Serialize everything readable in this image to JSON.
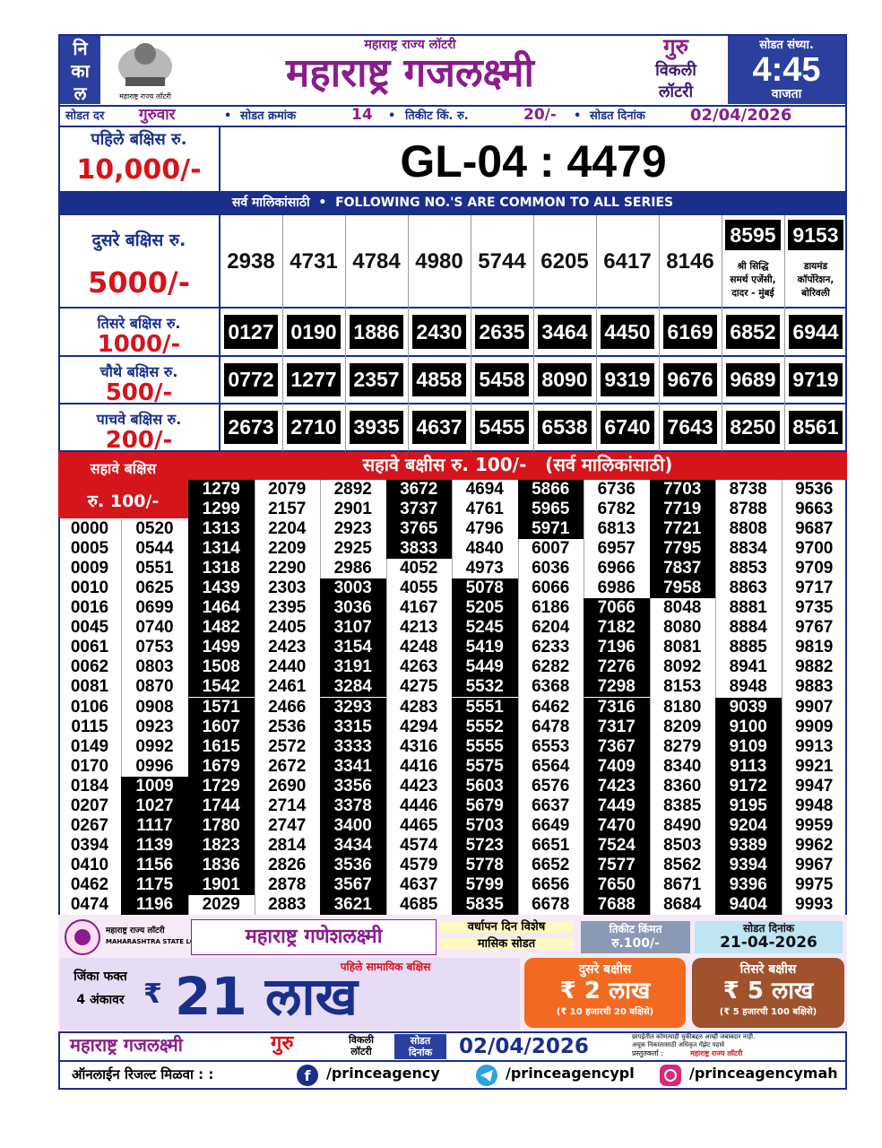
{
  "header": {
    "result_label": [
      "नि",
      "का",
      "ल"
    ],
    "logo_caption": "महाराष्ट्र राज्य लॉटरी",
    "org": "महाराष्ट्र राज्य लॉटरी",
    "title": "महाराष्ट्र गजलक्ष्मी",
    "day": "गुरु",
    "kind": [
      "विकली",
      "लॉटरी"
    ],
    "time_label": "सोडत संध्या.",
    "time": "4:45",
    "time_unit": "वाजता"
  },
  "info": {
    "day_label": "सोडत दर",
    "day": "गुरुवार",
    "draw_no_label": "सोडत क्रमांक",
    "draw_no": "14",
    "price_label": "तिकीट किं. रु.",
    "price": "20/-",
    "date_label": "सोडत दिनांक",
    "date": "02/04/2026"
  },
  "first_prize": {
    "label": "पहिले बक्षिस रु.",
    "amount": "10,000/-",
    "number": "GL-04 : 4479"
  },
  "common_banner": "सर्व मालिकांसाठी  •  FOLLOWING NO.'S ARE COMMON TO ALL SERIES",
  "prizes": [
    {
      "label": "दुसरे बक्षिस रु.",
      "amount": "5000/-",
      "numbers": [
        "2938",
        "4731",
        "4784",
        "4980",
        "5744",
        "6205",
        "6417",
        "8146"
      ],
      "agent_numbers": [
        {
          "number": "8595",
          "agent": [
            "श्री सिद्धि",
            "समर्थ एजेंसी,",
            "दादर - मुंबई"
          ]
        },
        {
          "number": "9153",
          "agent": [
            "डायमंड",
            "कॉर्पोरेशन,",
            "बोरिवली"
          ]
        }
      ]
    },
    {
      "label": "तिसरे बक्षिस रु.",
      "amount": "1000/-",
      "numbers": [
        "0127",
        "0190",
        "1886",
        "2430",
        "2635",
        "3464",
        "4450",
        "6169",
        "6852",
        "6944"
      ]
    },
    {
      "label": "चौथे बक्षिस रु.",
      "amount": "500/-",
      "numbers": [
        "0772",
        "1277",
        "2357",
        "4858",
        "5458",
        "8090",
        "9319",
        "9676",
        "9689",
        "9719"
      ]
    },
    {
      "label": "पाचवे बक्षिस रु.",
      "amount": "200/-",
      "numbers": [
        "2673",
        "2710",
        "3935",
        "4637",
        "5455",
        "6538",
        "6740",
        "7643",
        "8250",
        "8561"
      ]
    }
  ],
  "sixth_prize": {
    "label": "सहावे बक्षिस",
    "amount": "रु. 100/-",
    "banner": "सहावे बक्षीस रु. 100/-   (सर्व मालिकांसाठी)",
    "columns": [
      [
        "0000",
        "0005",
        "0009",
        "0010",
        "0016",
        "0045",
        "0061",
        "0062",
        "0081",
        "0106",
        "0115",
        "0149",
        "0170",
        "0184",
        "0207",
        "0267",
        "0394",
        "0410",
        "0462",
        "0474"
      ],
      [
        "0520",
        "0544",
        "0551",
        "0625",
        "0699",
        "0740",
        "0753",
        "0803",
        "0870",
        "0908",
        "0923",
        "0992",
        "0996",
        "1009",
        "1027",
        "1117",
        "1139",
        "1156",
        "1175",
        "1196"
      ],
      [
        "1279",
        "1299",
        "1313",
        "1314",
        "1318",
        "1439",
        "1464",
        "1482",
        "1499",
        "1508",
        "1542",
        "1571",
        "1607",
        "1615",
        "1679",
        "1729",
        "1744",
        "1780",
        "1823",
        "1836",
        "1901",
        "2029"
      ],
      [
        "2079",
        "2157",
        "2204",
        "2209",
        "2290",
        "2303",
        "2395",
        "2405",
        "2423",
        "2440",
        "2461",
        "2466",
        "2536",
        "2572",
        "2672",
        "2690",
        "2714",
        "2747",
        "2814",
        "2826",
        "2878",
        "2883"
      ],
      [
        "2892",
        "2901",
        "2923",
        "2925",
        "2986",
        "3003",
        "3036",
        "3107",
        "3154",
        "3191",
        "3284",
        "3293",
        "3315",
        "3333",
        "3341",
        "3356",
        "3378",
        "3400",
        "3434",
        "3536",
        "3567",
        "3621"
      ],
      [
        "3672",
        "3737",
        "3765",
        "3833",
        "4052",
        "4055",
        "4167",
        "4213",
        "4248",
        "4263",
        "4275",
        "4283",
        "4294",
        "4316",
        "4416",
        "4423",
        "4446",
        "4465",
        "4574",
        "4579",
        "4637",
        "4685"
      ],
      [
        "4694",
        "4761",
        "4796",
        "4840",
        "4973",
        "5078",
        "5205",
        "5245",
        "5419",
        "5449",
        "5532",
        "5551",
        "5552",
        "5555",
        "5575",
        "5603",
        "5679",
        "5703",
        "5723",
        "5778",
        "5799",
        "5835"
      ],
      [
        "5866",
        "5965",
        "5971",
        "6007",
        "6036",
        "6066",
        "6186",
        "6204",
        "6233",
        "6282",
        "6368",
        "6462",
        "6478",
        "6553",
        "6564",
        "6576",
        "6637",
        "6649",
        "6651",
        "6652",
        "6656",
        "6678"
      ],
      [
        "6736",
        "6782",
        "6813",
        "6957",
        "6966",
        "6986",
        "7066",
        "7182",
        "7196",
        "7276",
        "7298",
        "7316",
        "7317",
        "7367",
        "7409",
        "7423",
        "7449",
        "7470",
        "7524",
        "7577",
        "7650",
        "7688"
      ],
      [
        "7703",
        "7719",
        "7721",
        "7795",
        "7837",
        "7958",
        "8048",
        "8080",
        "8081",
        "8092",
        "8153",
        "8180",
        "8209",
        "8279",
        "8340",
        "8360",
        "8385",
        "8490",
        "8503",
        "8562",
        "8671",
        "8684"
      ],
      [
        "8738",
        "8788",
        "8808",
        "8834",
        "8853",
        "8863",
        "8881",
        "8884",
        "8885",
        "8941",
        "8948",
        "9039",
        "9100",
        "9109",
        "9113",
        "9172",
        "9195",
        "9204",
        "9389",
        "9394",
        "9396",
        "9404"
      ],
      [
        "9536",
        "9663",
        "9687",
        "9700",
        "9709",
        "9717",
        "9735",
        "9767",
        "9819",
        "9882",
        "9883",
        "9907",
        "9909",
        "9913",
        "9921",
        "9947",
        "9948",
        "9959",
        "9962",
        "9967",
        "9975",
        "9993"
      ]
    ]
  },
  "promo": {
    "logo_lines": [
      "महाराष्ट्र राज्य लॉटरी",
      "MAHARASHTRA STATE LOTTERY"
    ],
    "title": "महाराष्ट्र गणेशलक्ष्मी",
    "special": [
      "वर्धापन दिन विशेष",
      "मासिक सोडत"
    ],
    "price_label": "तिकीट किंमत",
    "price": "रु.100/-",
    "date_label": "सोडत दिनांक",
    "date": "21-04-2026",
    "win_lines": [
      "जिंका फक्त",
      "4 अंकावर"
    ],
    "currency": "₹",
    "first_label": "पहिले सामायिक बक्षिस",
    "first_amount": "21 लाख",
    "second": {
      "label": "दुसरे बक्षीस",
      "amount": "₹ 2 लाख",
      "note": "(₹ 10 हजारची 20 बक्षिसे)"
    },
    "third": {
      "label": "तिसरे बक्षीस",
      "amount": "₹ 5 लाख",
      "note": "(₹ 5 हजारची 100 बक्षिसे)"
    }
  },
  "footer": {
    "title": "महाराष्ट्र गजलक्ष्मी",
    "day": "गुरु",
    "kind": [
      "विकली",
      "लॉटरी"
    ],
    "date_label": [
      "सोडत",
      "दिनांक"
    ],
    "date": "02/04/2026",
    "disclaimer": [
      "छापईतील कोणत्याही चुकीबद्दल आम्ही जबाबदार नाही.",
      "अचूक निकालासाठी अधिकृत गॅझेट पहावे"
    ],
    "presenter_label": "प्रस्तुतकर्ता :",
    "presenter": "महाराष्ट्र राज्य लॉटरी"
  },
  "online": {
    "label": "ऑनलाईन रिजल्ट मिळवा : :",
    "links": [
      "/princeagency",
      "/princeagencypl",
      "/princeagencymah"
    ]
  }
}
